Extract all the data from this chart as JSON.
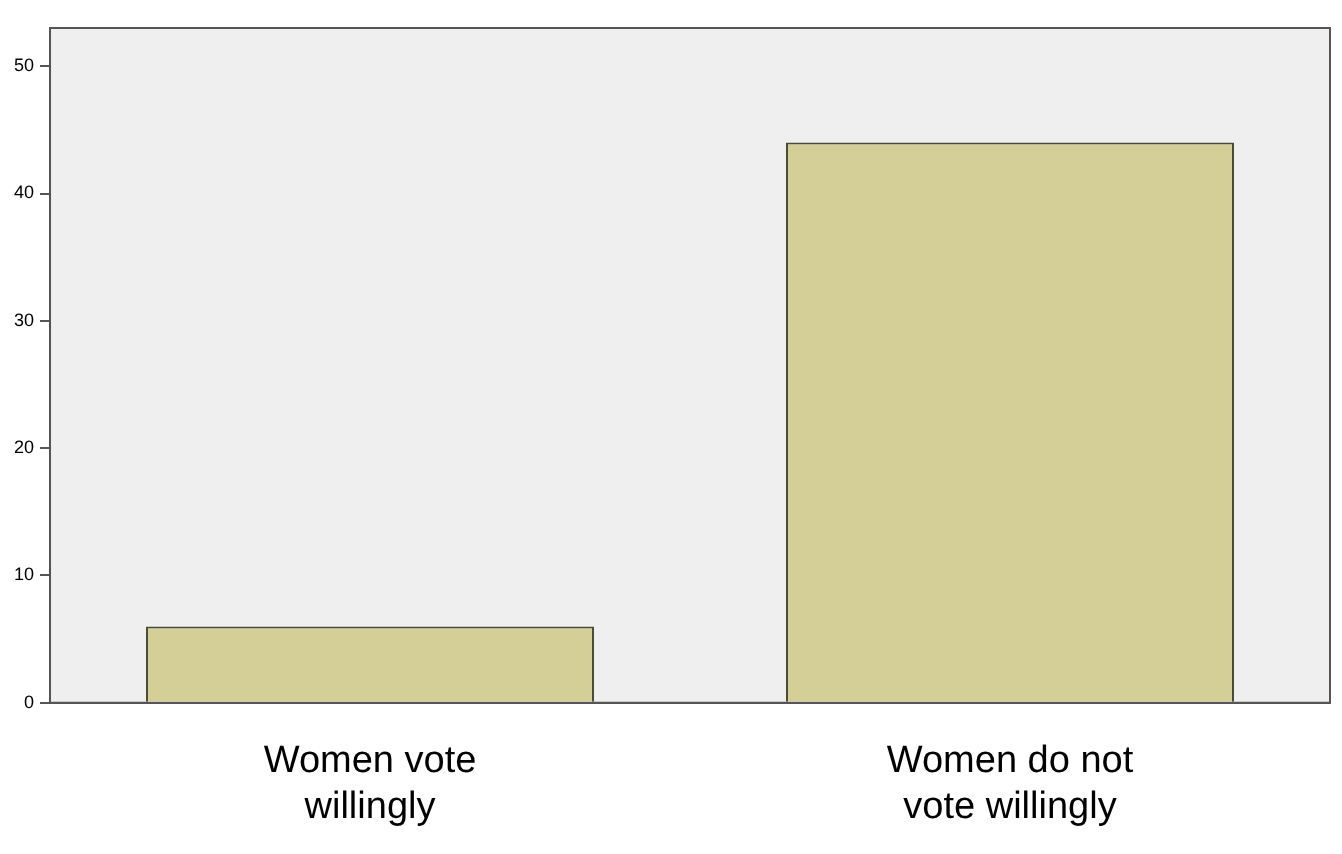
{
  "chart_data": {
    "type": "bar",
    "categories": [
      "Women vote willingly",
      "Women do not vote willingly"
    ],
    "values": [
      6,
      44
    ],
    "color": "#d3cf96",
    "ylim": [
      0,
      53
    ],
    "yticks": [
      0,
      10,
      20,
      30,
      40,
      50
    ],
    "grid": false,
    "legend": false
  }
}
